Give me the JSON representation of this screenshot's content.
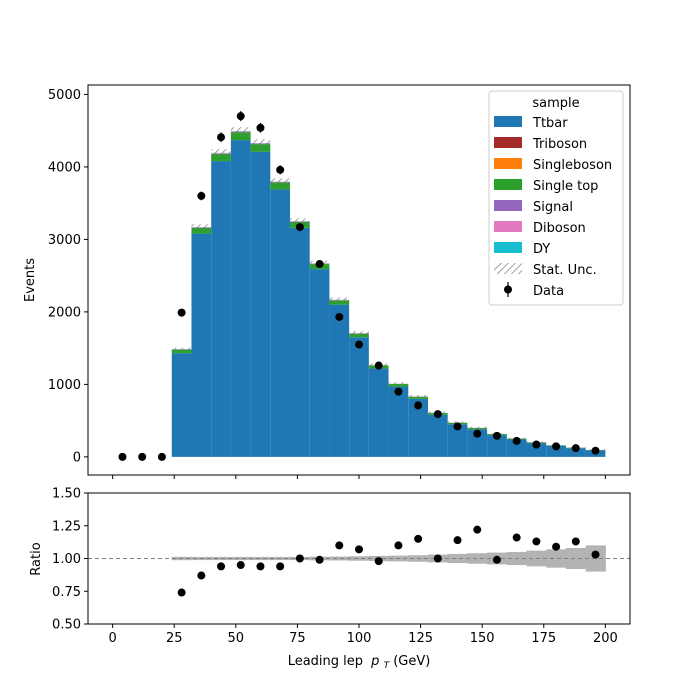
{
  "chart_data": [
    {
      "type": "bar",
      "stacked": true,
      "xlabel": "Leading lep",
      "xlabel_sub": "T",
      "xlabel_unit": " (GeV)",
      "xlabel_var": "p",
      "ylabel": "Events",
      "xlim": [
        -10,
        210
      ],
      "ylim": [
        -250,
        5130
      ],
      "xticks": [
        "0",
        "25",
        "50",
        "75",
        "100",
        "125",
        "150",
        "175",
        "200"
      ],
      "yticks": [
        "0",
        "1000",
        "2000",
        "3000",
        "4000",
        "5000"
      ],
      "bin_edges": [
        24,
        32,
        40,
        48,
        56,
        64,
        72,
        80,
        88,
        96,
        104,
        112,
        120,
        128,
        136,
        144,
        152,
        160,
        168,
        176,
        184,
        192,
        200
      ],
      "series": [
        {
          "name": "Ttbar",
          "color": "#1f77b4",
          "values": [
            1430,
            3080,
            4080,
            4370,
            4210,
            3690,
            3160,
            2590,
            2100,
            1650,
            1220,
            970,
            800,
            580,
            450,
            380,
            300,
            240,
            190,
            150,
            120,
            90
          ]
        },
        {
          "name": "Triboson",
          "color": "#a52a2a",
          "values": [
            0,
            0,
            0,
            0,
            0,
            0,
            0,
            0,
            0,
            0,
            0,
            0,
            0,
            0,
            0,
            0,
            0,
            0,
            0,
            0,
            0,
            0
          ]
        },
        {
          "name": "Singleboson",
          "color": "#ff7f0e",
          "values": [
            0,
            0,
            0,
            0,
            0,
            0,
            0,
            0,
            0,
            0,
            0,
            0,
            0,
            0,
            0,
            0,
            0,
            0,
            0,
            0,
            0,
            0
          ]
        },
        {
          "name": "Single top",
          "color": "#2ca02c",
          "values": [
            50,
            80,
            100,
            110,
            105,
            95,
            80,
            70,
            60,
            50,
            40,
            35,
            30,
            25,
            20,
            18,
            15,
            12,
            10,
            8,
            7,
            5
          ]
        },
        {
          "name": "Signal",
          "color": "#9467bd",
          "values": [
            0,
            0,
            0,
            0,
            0,
            0,
            0,
            0,
            0,
            0,
            0,
            0,
            0,
            0,
            0,
            0,
            0,
            0,
            0,
            0,
            0,
            0
          ]
        },
        {
          "name": "Diboson",
          "color": "#e377c2",
          "values": [
            5,
            8,
            10,
            10,
            10,
            9,
            8,
            7,
            6,
            5,
            4,
            3,
            3,
            2,
            2,
            2,
            1,
            1,
            1,
            1,
            1,
            1
          ]
        },
        {
          "name": "DY",
          "color": "#17becf",
          "values": [
            2,
            3,
            4,
            4,
            4,
            3,
            3,
            2,
            2,
            2,
            1,
            1,
            1,
            1,
            1,
            1,
            1,
            0,
            0,
            0,
            0,
            0
          ]
        }
      ],
      "stat_unc": {
        "name": "Stat. Unc.",
        "rel_err": [
          0.013,
          0.012,
          0.012,
          0.012,
          0.012,
          0.012,
          0.012,
          0.014,
          0.015,
          0.017,
          0.02,
          0.022,
          0.025,
          0.03,
          0.035,
          0.04,
          0.045,
          0.05,
          0.06,
          0.07,
          0.08,
          0.1
        ]
      },
      "data": {
        "name": "Data",
        "x": [
          4,
          12,
          20,
          28,
          36,
          44,
          52,
          60,
          68,
          76,
          84,
          92,
          100,
          108,
          116,
          124,
          132,
          140,
          148,
          156,
          164,
          172,
          180,
          188,
          196
        ],
        "y": [
          0,
          0,
          0,
          1990,
          3600,
          4410,
          4700,
          4540,
          3960,
          3170,
          2660,
          1930,
          1550,
          1260,
          900,
          710,
          590,
          420,
          320,
          290,
          220,
          170,
          145,
          120,
          85
        ]
      },
      "legend": {
        "title": "sample",
        "position": "top-right"
      }
    },
    {
      "type": "scatter",
      "ylabel": "Ratio",
      "ylim": [
        0.5,
        1.5
      ],
      "yticks": [
        "0.50",
        "0.75",
        "1.00",
        "1.25",
        "1.50"
      ],
      "reference_line": 1.0,
      "x": [
        28,
        36,
        44,
        52,
        60,
        68,
        76,
        84,
        92,
        100,
        108,
        116,
        124,
        132,
        140,
        148,
        156,
        164,
        172,
        180,
        188,
        196
      ],
      "y": [
        0.74,
        0.87,
        0.94,
        0.95,
        0.94,
        0.94,
        1.0,
        0.99,
        1.1,
        1.07,
        0.98,
        1.1,
        1.15,
        1.0,
        1.14,
        1.22,
        0.99,
        1.16,
        1.13,
        1.09,
        1.13,
        1.03
      ]
    }
  ]
}
